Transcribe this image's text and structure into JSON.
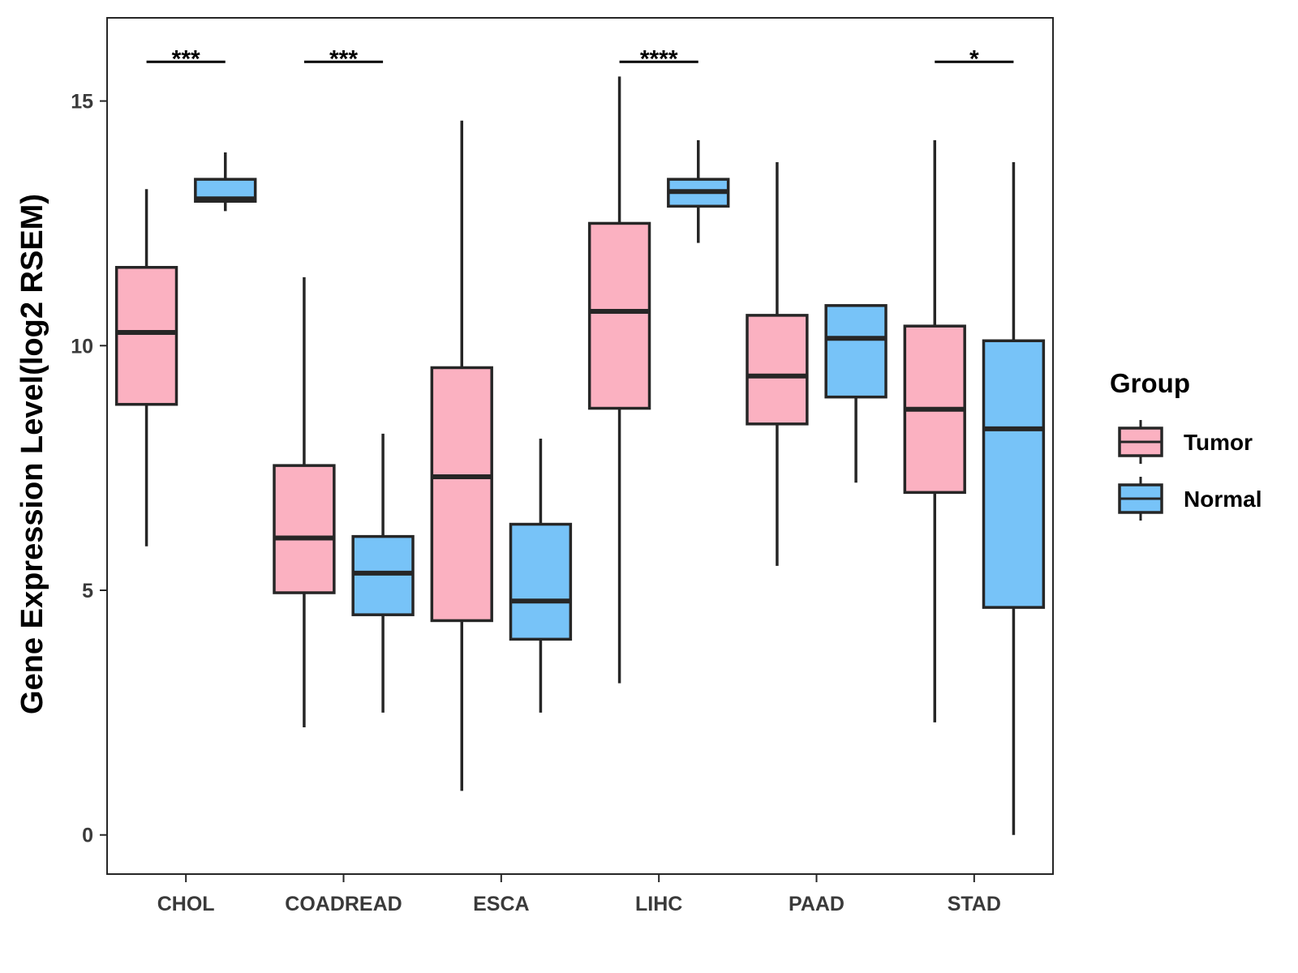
{
  "chart_data": {
    "type": "boxplot",
    "title": "",
    "xlabel": "",
    "ylabel": "Gene Expression Level(log2 RSEM)",
    "ylim": [
      -0.8,
      16.7
    ],
    "yticks": [
      0,
      5,
      10,
      15
    ],
    "ytick_labels": [
      "0",
      "5",
      "10",
      "15"
    ],
    "categories": [
      "CHOL",
      "COADREAD",
      "ESCA",
      "LIHC",
      "PAAD",
      "STAD"
    ],
    "legend": {
      "title": "Group",
      "position": "right",
      "entries": [
        "Tumor",
        "Normal"
      ]
    },
    "series": [
      {
        "name": "Tumor",
        "color": "#FBB1C1",
        "boxes": [
          {
            "min": 5.9,
            "q1": 8.8,
            "median": 10.27,
            "q3": 11.6,
            "max": 13.2
          },
          {
            "min": 2.2,
            "q1": 4.95,
            "median": 6.07,
            "q3": 7.55,
            "max": 11.4
          },
          {
            "min": 0.9,
            "q1": 4.38,
            "median": 7.32,
            "q3": 9.55,
            "max": 14.6
          },
          {
            "min": 3.1,
            "q1": 8.72,
            "median": 10.7,
            "q3": 12.5,
            "max": 15.5
          },
          {
            "min": 5.5,
            "q1": 8.4,
            "median": 9.38,
            "q3": 10.62,
            "max": 13.75
          },
          {
            "min": 2.3,
            "q1": 7.0,
            "median": 8.7,
            "q3": 10.4,
            "max": 14.2
          }
        ]
      },
      {
        "name": "Normal",
        "color": "#77C3F8",
        "boxes": [
          {
            "min": 12.75,
            "q1": 12.95,
            "median": 13.0,
            "q3": 13.4,
            "max": 13.95
          },
          {
            "min": 2.5,
            "q1": 4.5,
            "median": 5.35,
            "q3": 6.1,
            "max": 8.2
          },
          {
            "min": 2.5,
            "q1": 4.0,
            "median": 4.78,
            "q3": 6.35,
            "max": 8.1
          },
          {
            "min": 12.1,
            "q1": 12.85,
            "median": 13.15,
            "q3": 13.4,
            "max": 14.2
          },
          {
            "min": 7.2,
            "q1": 8.95,
            "median": 10.15,
            "q3": 10.82,
            "max": 10.82
          },
          {
            "min": 0.0,
            "q1": 4.65,
            "median": 8.3,
            "q3": 10.1,
            "max": 13.75
          }
        ]
      }
    ],
    "significance": [
      {
        "category": "CHOL",
        "label": "***",
        "y": 15.8
      },
      {
        "category": "COADREAD",
        "label": "***",
        "y": 15.8
      },
      {
        "category": "LIHC",
        "label": "****",
        "y": 15.8
      },
      {
        "category": "STAD",
        "label": "*",
        "y": 15.8
      }
    ]
  }
}
